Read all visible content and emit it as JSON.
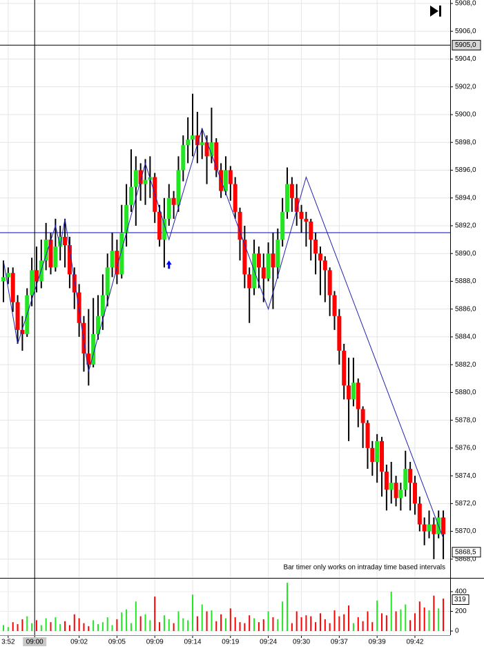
{
  "chart_data": {
    "type": "candlestick",
    "opens": [
      5888,
      5888.3,
      5888.6,
      5886.5,
      5884.5,
      5884.2,
      5887,
      5888.8,
      5888,
      5889.5,
      5891,
      5889,
      5890.5,
      5891.2,
      5890.6,
      5888.5,
      5887.2,
      5885,
      5882.8,
      5882,
      5884.2,
      5885.5,
      5887,
      5889,
      5890.2,
      5888.5,
      5891.5,
      5893.5,
      5894.8,
      5896,
      5895,
      5895.3,
      5895.5,
      5893,
      5891,
      5892.5,
      5894,
      5893.5,
      5896,
      5897.8,
      5898.2,
      5898.5,
      5897.8,
      5898,
      5897,
      5898,
      5896,
      5894.5,
      5896,
      5895,
      5893,
      5891,
      5888.5,
      5887.5,
      5890,
      5889,
      5888.2,
      5890,
      5889,
      5891,
      5893,
      5895,
      5894,
      5893,
      5892.5,
      5892.3,
      5891,
      5890,
      5889.5,
      5888.8,
      5887,
      5885.5,
      5883,
      5880.5,
      5879.5,
      5880.7,
      5878.8,
      5877.8,
      5876,
      5875,
      5876.5,
      5874.3,
      5873,
      5873.5,
      5872.4,
      5873,
      5874.5,
      5873.5,
      5872,
      5870.5,
      5870,
      5870.5,
      5869.8,
      5871
    ],
    "highs": [
      5889.5,
      5889,
      5889,
      5887,
      5885.5,
      5887.5,
      5889.7,
      5890.5,
      5891,
      5892.2,
      5891.5,
      5892.5,
      5892,
      5892.5,
      5891.2,
      5889,
      5887.8,
      5885.5,
      5886,
      5886.8,
      5887,
      5888.5,
      5890,
      5891.5,
      5891,
      5893.5,
      5895,
      5897.5,
      5897,
      5896.5,
      5896.8,
      5897,
      5895.8,
      5893.5,
      5894,
      5895,
      5894.5,
      5897,
      5898.5,
      5899.8,
      5901.5,
      5900.2,
      5899,
      5898.5,
      5900.5,
      5898.3,
      5896.5,
      5897,
      5896.3,
      5895.5,
      5893.3,
      5892,
      5889,
      5891,
      5890.5,
      5890,
      5890.8,
      5891.5,
      5891.8,
      5894,
      5896.2,
      5895.5,
      5895,
      5893.5,
      5893,
      5892.5,
      5891.5,
      5890.5,
      5889.8,
      5889,
      5887.3,
      5886,
      5883.5,
      5882.5,
      5882.5,
      5881,
      5879,
      5878,
      5876.5,
      5877,
      5876.8,
      5874.8,
      5875,
      5874,
      5873.5,
      5875.8,
      5875,
      5874,
      5872.5,
      5871,
      5871.5,
      5871,
      5871.5,
      5871.5
    ],
    "lows": [
      5886.5,
      5887.8,
      5885.8,
      5883.5,
      5883,
      5884,
      5886.2,
      5887.2,
      5887.5,
      5888.8,
      5888.5,
      5888.7,
      5889.5,
      5889,
      5887.5,
      5886,
      5884,
      5881.5,
      5880.5,
      5881.8,
      5883.8,
      5884.5,
      5886.2,
      5888.3,
      5887.8,
      5888.2,
      5890.5,
      5893,
      5892,
      5893.8,
      5893.5,
      5894,
      5892.2,
      5890.5,
      5889,
      5892,
      5892.5,
      5893,
      5895.2,
      5896.5,
      5897,
      5896.5,
      5896.8,
      5895,
      5896.5,
      5895.5,
      5894,
      5894.2,
      5893.8,
      5892.5,
      5889.5,
      5887.5,
      5885,
      5887,
      5887.5,
      5886.5,
      5888,
      5886,
      5888.2,
      5890.5,
      5892.5,
      5893,
      5892,
      5891.5,
      5890.5,
      5889.5,
      5888.5,
      5887,
      5886.5,
      5885.5,
      5884.5,
      5882,
      5879.5,
      5876.5,
      5879,
      5877.5,
      5876,
      5874.5,
      5874,
      5873.5,
      5872.5,
      5871.5,
      5872,
      5871.8,
      5871.5,
      5872.5,
      5871.5,
      5871.2,
      5870,
      5869,
      5869.5,
      5868,
      5869.5,
      5868
    ],
    "closes": [
      5888.3,
      5888.6,
      5886.5,
      5884.5,
      5884.2,
      5887,
      5888.8,
      5888,
      5889.5,
      5891,
      5889,
      5890.5,
      5891.2,
      5890.6,
      5888.5,
      5887.2,
      5885,
      5882.8,
      5882,
      5884.2,
      5885.5,
      5887,
      5889,
      5890.2,
      5888.5,
      5891.5,
      5893.5,
      5894.8,
      5896,
      5895,
      5895.3,
      5895.5,
      5893,
      5891,
      5892.5,
      5894,
      5893.5,
      5896,
      5897.8,
      5898.2,
      5898.5,
      5897.8,
      5898,
      5897,
      5898,
      5896,
      5894.5,
      5896,
      5895,
      5893,
      5891,
      5888.5,
      5887.5,
      5890,
      5889,
      5888.2,
      5890,
      5889,
      5891,
      5893,
      5895,
      5894,
      5893,
      5892.5,
      5892.3,
      5891,
      5890,
      5889.5,
      5888.8,
      5887,
      5885.5,
      5883,
      5880.5,
      5879.5,
      5880.7,
      5878.8,
      5877.8,
      5876,
      5875,
      5876.5,
      5874.3,
      5873,
      5873.5,
      5872.4,
      5873,
      5874.5,
      5873.5,
      5872,
      5870.5,
      5870,
      5870.5,
      5869.8,
      5871,
      5869.8
    ],
    "up_color": "#22e622",
    "down_color": "#ff0000",
    "wick_color": "#000000",
    "xlim": [
      -0.73,
      94.45
    ],
    "xticks": [
      {
        "value": 1,
        "label": "3:52"
      },
      {
        "value": 6.6,
        "label": "09:00"
      },
      {
        "value": 16,
        "label": "09:02"
      },
      {
        "value": 24,
        "label": "09:05"
      },
      {
        "value": 32,
        "label": "09:09"
      },
      {
        "value": 40,
        "label": "09:14"
      },
      {
        "value": 48,
        "label": "09:19"
      },
      {
        "value": 56,
        "label": "09:24"
      },
      {
        "value": 63,
        "label": "09:30"
      },
      {
        "value": 71,
        "label": "09:37"
      },
      {
        "value": 79,
        "label": "09:39"
      },
      {
        "value": 87,
        "label": "09:42"
      }
    ],
    "ylim": [
      5866.7,
      5908.25
    ],
    "yticks": [
      {
        "value": 5868,
        "label": "5868,0"
      },
      {
        "value": 5870,
        "label": "5870,0"
      },
      {
        "value": 5872,
        "label": "5872,0"
      },
      {
        "value": 5874,
        "label": "5874,0"
      },
      {
        "value": 5876,
        "label": "5876,0"
      },
      {
        "value": 5878,
        "label": "5878,0"
      },
      {
        "value": 5880,
        "label": "5880,0"
      },
      {
        "value": 5882,
        "label": "5882,0"
      },
      {
        "value": 5884,
        "label": "5884,0"
      },
      {
        "value": 5886,
        "label": "5886,0"
      },
      {
        "value": 5888,
        "label": "5888,0"
      },
      {
        "value": 5890,
        "label": "5890,0"
      },
      {
        "value": 5892,
        "label": "5892,0"
      },
      {
        "value": 5894,
        "label": "5894,0"
      },
      {
        "value": 5896,
        "label": "5896,0"
      },
      {
        "value": 5898,
        "label": "5898,0"
      },
      {
        "value": 5900,
        "label": "5900,0"
      },
      {
        "value": 5902,
        "label": "5902,0"
      },
      {
        "value": 5904,
        "label": "5904,0"
      },
      {
        "value": 5906,
        "label": "5906,0"
      },
      {
        "value": 5908,
        "label": "5908,0"
      }
    ],
    "grid": true,
    "zigzag": {
      "color": "#2020b0",
      "x": [
        0,
        3,
        11,
        12,
        13,
        18,
        30,
        35,
        42,
        56,
        64,
        93
      ],
      "values": [
        5889.5,
        5883.5,
        5892,
        5890.5,
        5892.5,
        5881.5,
        5896.5,
        5891,
        5899,
        5886,
        5895.5,
        5869.5
      ]
    },
    "horizontal_line": {
      "value": 5891.5,
      "color": "#0000c0"
    },
    "crosshair": {
      "x": 6.6,
      "value": 5905,
      "label": "5905,0"
    },
    "last_price": {
      "value": 5868.5,
      "label": "5868,5"
    },
    "signal": {
      "x": 35,
      "value": 5889.6,
      "color": "#0000ff"
    },
    "note": "Bar timer only works on intraday time based intervals",
    "volume": {
      "values": [
        60,
        40,
        90,
        70,
        120,
        150,
        80,
        110,
        60,
        130,
        90,
        140,
        70,
        100,
        60,
        170,
        130,
        80,
        50,
        110,
        70,
        90,
        140,
        60,
        120,
        190,
        220,
        80,
        300,
        150,
        170,
        110,
        350,
        90,
        160,
        120,
        80,
        200,
        130,
        110,
        370,
        150,
        270,
        200,
        210,
        100,
        170,
        130,
        230,
        140,
        90,
        80,
        160,
        130,
        90,
        120,
        200,
        140,
        120,
        300,
        490,
        80,
        200,
        140,
        160,
        150,
        90,
        180,
        120,
        80,
        210,
        150,
        170,
        260,
        80,
        140,
        100,
        200,
        90,
        310,
        180,
        160,
        400,
        200,
        220,
        270,
        110,
        180,
        300,
        240,
        210,
        360,
        230,
        330
      ],
      "ylim": [
        0,
        533
      ],
      "yticks": [
        0,
        200,
        400
      ],
      "marker": {
        "value": 319,
        "label": "319"
      }
    }
  }
}
